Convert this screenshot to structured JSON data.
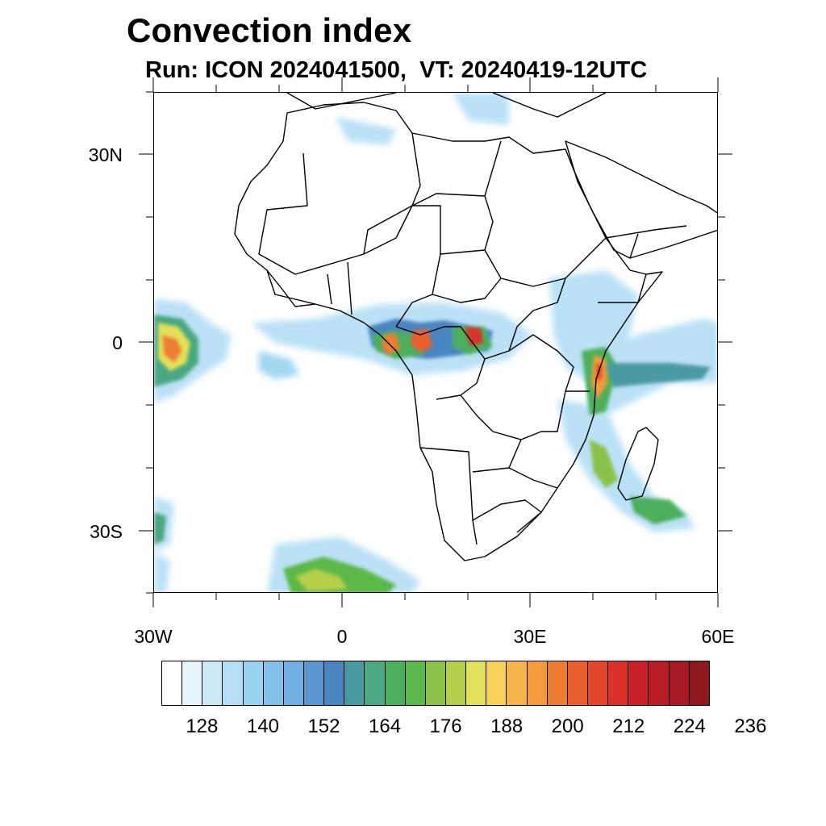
{
  "title": "Convection index",
  "subtitle": "Run: ICON 2024041500,  VT: 20240419-12UTC",
  "map": {
    "lat_labels": [
      "30N",
      "0",
      "30S"
    ],
    "lon_labels": [
      "30W",
      "0",
      "30E",
      "60E"
    ],
    "field": "convection index"
  },
  "colorbar": {
    "colors": [
      "#ffffff",
      "#e6f4fc",
      "#cce9f8",
      "#b3def5",
      "#9ad3f1",
      "#84c1ea",
      "#70ade0",
      "#5c96d1",
      "#4a85c0",
      "#4a9aa3",
      "#4aa882",
      "#4caf5c",
      "#5cb84a",
      "#8cc14a",
      "#b5cf4a",
      "#e3e05a",
      "#f7d05a",
      "#f5b54a",
      "#f29a3c",
      "#ee7d34",
      "#e9602e",
      "#e3462b",
      "#d93029",
      "#c92127",
      "#b81c25",
      "#a51a22",
      "#8e1a1e"
    ],
    "labels": [
      "128",
      "140",
      "152",
      "164",
      "176",
      "188",
      "200",
      "212",
      "224",
      "236"
    ]
  }
}
